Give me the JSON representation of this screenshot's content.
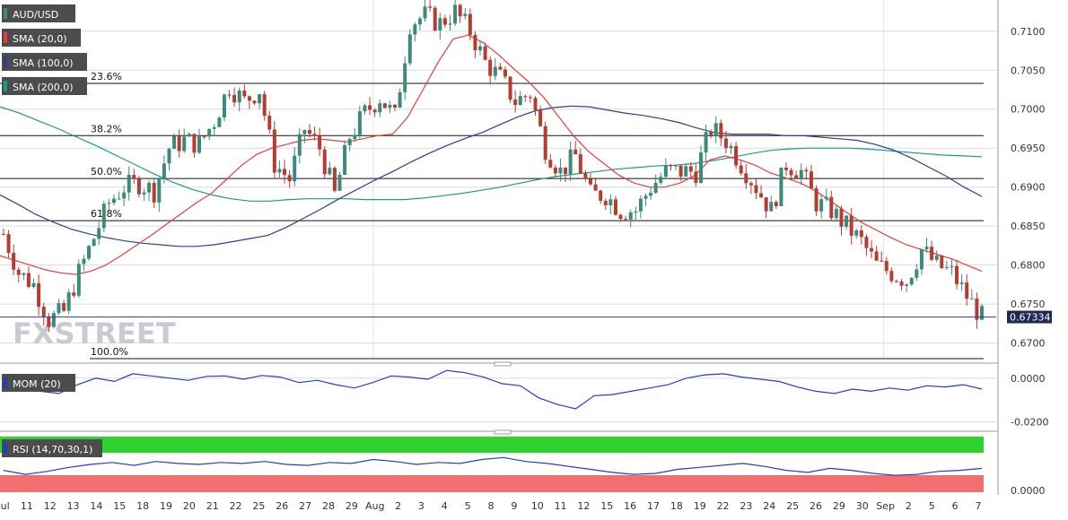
{
  "colors": {
    "candle_up": "#3b8a7c",
    "candle_down": "#b43c32",
    "sma20": "#e0403a",
    "sma100": "#2b3f8f",
    "sma200": "#1a9a8c",
    "mom": "#2040c0",
    "rsi_line": "#2040c0",
    "rsi_overbought": "#2ed22e",
    "rsi_oversold": "#f07070",
    "tag_bg": "#4c4c4c",
    "price_tag": "#1e2a52",
    "grid": "#dcdcdc"
  },
  "legend": {
    "symbol": "AUD/USD",
    "sma20": "SMA (20,0)",
    "sma100": "SMA (100,0)",
    "sma200": "SMA (200,0)",
    "mom": "MOM (20)",
    "rsi": "RSI (14,70,30,1)"
  },
  "watermark": "FXSTREET",
  "chart_data": [
    {
      "type": "candlestick",
      "title": "AUD/USD",
      "ylim": [
        0.668,
        0.714
      ],
      "yticks": [
        "0.6700",
        "0.6750",
        "0.6800",
        "0.6850",
        "0.6900",
        "0.6950",
        "0.7000",
        "0.7050",
        "0.7100"
      ],
      "current_price": "0.67334",
      "fib_levels": [
        {
          "label": "23.6%",
          "value": 0.7033
        },
        {
          "label": "38.2%",
          "value": 0.6966
        },
        {
          "label": "50.0%",
          "value": 0.6911
        },
        {
          "label": "61.8%",
          "value": 0.6857
        },
        {
          "label": "100.0%",
          "value": 0.668
        }
      ],
      "x_labels": [
        "Jul",
        "11",
        "12",
        "13",
        "14",
        "15",
        "18",
        "19",
        "20",
        "21",
        "22",
        "25",
        "26",
        "27",
        "28",
        "29",
        "Aug",
        "2",
        "3",
        "4",
        "5",
        "8",
        "9",
        "10",
        "11",
        "12",
        "15",
        "16",
        "17",
        "18",
        "19",
        "22",
        "23",
        "24",
        "25",
        "26",
        "29",
        "30",
        "Sep",
        "2",
        "5",
        "6",
        "7"
      ],
      "close_series": [
        0.684,
        0.679,
        0.6775,
        0.673,
        0.674,
        0.679,
        0.6835,
        0.688,
        0.69,
        0.6905,
        0.6895,
        0.695,
        0.696,
        0.6955,
        0.6985,
        0.703,
        0.701,
        0.7025,
        0.693,
        0.691,
        0.6975,
        0.695,
        0.689,
        0.6965,
        0.6995,
        0.7015,
        0.699,
        0.711,
        0.712,
        0.711,
        0.7125,
        0.71,
        0.706,
        0.704,
        0.701,
        0.702,
        0.695,
        0.692,
        0.694,
        0.689,
        0.689,
        0.687,
        0.687,
        0.69,
        0.692,
        0.692,
        0.692,
        0.6975,
        0.696,
        0.693,
        0.69,
        0.687,
        0.693,
        0.692,
        0.688,
        0.687,
        0.685,
        0.683,
        0.68,
        0.679,
        0.678,
        0.682,
        0.68,
        0.679,
        0.676,
        0.6733
      ],
      "sma20": [
        0.6812,
        0.6806,
        0.68,
        0.6794,
        0.679,
        0.6788,
        0.6792,
        0.68,
        0.6812,
        0.6825,
        0.6838,
        0.6852,
        0.6866,
        0.688,
        0.6892,
        0.691,
        0.6928,
        0.6942,
        0.695,
        0.6955,
        0.696,
        0.6962,
        0.696,
        0.6958,
        0.6962,
        0.6966,
        0.6968,
        0.699,
        0.7025,
        0.706,
        0.709,
        0.7095,
        0.7085,
        0.707,
        0.7052,
        0.7035,
        0.7015,
        0.699,
        0.6965,
        0.6945,
        0.693,
        0.6915,
        0.6905,
        0.69,
        0.69,
        0.6905,
        0.6915,
        0.6935,
        0.694,
        0.6935,
        0.6928,
        0.6918,
        0.6912,
        0.6905,
        0.6895,
        0.6882,
        0.6868,
        0.6855,
        0.6845,
        0.6835,
        0.6826,
        0.682,
        0.6814,
        0.6808,
        0.68,
        0.6792
      ],
      "sma100": [
        0.689,
        0.6878,
        0.6865,
        0.6855,
        0.6846,
        0.684,
        0.6835,
        0.6831,
        0.6828,
        0.6826,
        0.6824,
        0.6824,
        0.6826,
        0.683,
        0.6834,
        0.6838,
        0.6848,
        0.686,
        0.6872,
        0.6885,
        0.6897,
        0.6909,
        0.692,
        0.6932,
        0.6943,
        0.6953,
        0.6962,
        0.697,
        0.698,
        0.699,
        0.6998,
        0.7002,
        0.7004,
        0.7003,
        0.6999,
        0.6995,
        0.6992,
        0.6988,
        0.6983,
        0.6976,
        0.697,
        0.6968,
        0.6968,
        0.6968,
        0.6966,
        0.6966,
        0.6964,
        0.6962,
        0.696,
        0.6955,
        0.6948,
        0.6938,
        0.6926,
        0.6914,
        0.69,
        0.6888
      ],
      "sma200": [
        0.7003,
        0.6995,
        0.6985,
        0.6975,
        0.6964,
        0.6953,
        0.6941,
        0.6929,
        0.6917,
        0.6906,
        0.6897,
        0.689,
        0.6885,
        0.6882,
        0.6882,
        0.6884,
        0.6885,
        0.6885,
        0.6885,
        0.6884,
        0.6884,
        0.6884,
        0.6886,
        0.6889,
        0.6892,
        0.6896,
        0.69,
        0.6905,
        0.691,
        0.6914,
        0.6917,
        0.692,
        0.6923,
        0.6925,
        0.6927,
        0.6928,
        0.693,
        0.6934,
        0.6938,
        0.6943,
        0.6947,
        0.6949,
        0.695,
        0.695,
        0.695,
        0.6949,
        0.6947,
        0.6945,
        0.6943,
        0.6941,
        0.694,
        0.6939
      ]
    },
    {
      "type": "line",
      "title": "MOM (20)",
      "ylim": [
        -0.023,
        0.004
      ],
      "yticks": [
        "0.0000",
        "-0.0200"
      ],
      "values": [
        -0.002,
        -0.004,
        -0.006,
        -0.007,
        -0.003,
        0.0,
        -0.0015,
        0.002,
        0.001,
        0.0,
        -0.001,
        0.0008,
        0.001,
        -0.0005,
        0.0012,
        0.0005,
        -0.002,
        -0.001,
        -0.003,
        -0.0045,
        -0.002,
        0.001,
        0.0005,
        -0.0005,
        0.0035,
        0.0025,
        0.0005,
        -0.0025,
        -0.0035,
        -0.009,
        -0.012,
        -0.014,
        -0.008,
        -0.0075,
        -0.006,
        -0.0045,
        -0.003,
        0.0,
        0.0015,
        0.002,
        0.0005,
        -0.0005,
        -0.0015,
        -0.004,
        -0.006,
        -0.007,
        -0.005,
        -0.006,
        -0.0045,
        -0.0055,
        -0.0035,
        -0.004,
        -0.003,
        -0.005
      ]
    },
    {
      "type": "line",
      "title": "RSI (14,70,30,1)",
      "ylim": [
        22,
        78
      ],
      "yticks": [
        "0.0000"
      ],
      "values": [
        44,
        40,
        43,
        47,
        50,
        52,
        49,
        53,
        51,
        50,
        52,
        51,
        53,
        50,
        49,
        52,
        51,
        55,
        53,
        50,
        52,
        51,
        55,
        57,
        53,
        51,
        48,
        45,
        42,
        40,
        41,
        45,
        47,
        49,
        51,
        48,
        44,
        42,
        46,
        44,
        41,
        39,
        40,
        43,
        44,
        46
      ]
    }
  ]
}
